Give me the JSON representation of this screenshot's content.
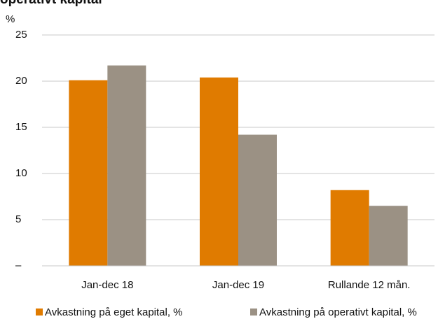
{
  "chart_data": {
    "type": "bar",
    "title": "operativt kapital",
    "y_unit": "%",
    "categories": [
      "Jan-dec 18",
      "Jan-dec 19",
      "Rullande 12 mån."
    ],
    "series": [
      {
        "name": "Avkastning på eget kapital, %",
        "color": "#e07b00",
        "values": [
          20.1,
          20.4,
          8.2
        ]
      },
      {
        "name": "Avkastning på operativt kapital, %",
        "color": "#9b9184",
        "values": [
          21.7,
          14.2,
          6.5
        ]
      }
    ],
    "ylim": [
      0,
      25
    ],
    "yticks": [
      {
        "value": 0,
        "label": "–"
      },
      5,
      10,
      15,
      20,
      25
    ],
    "grid": true,
    "legend": "bottom"
  }
}
